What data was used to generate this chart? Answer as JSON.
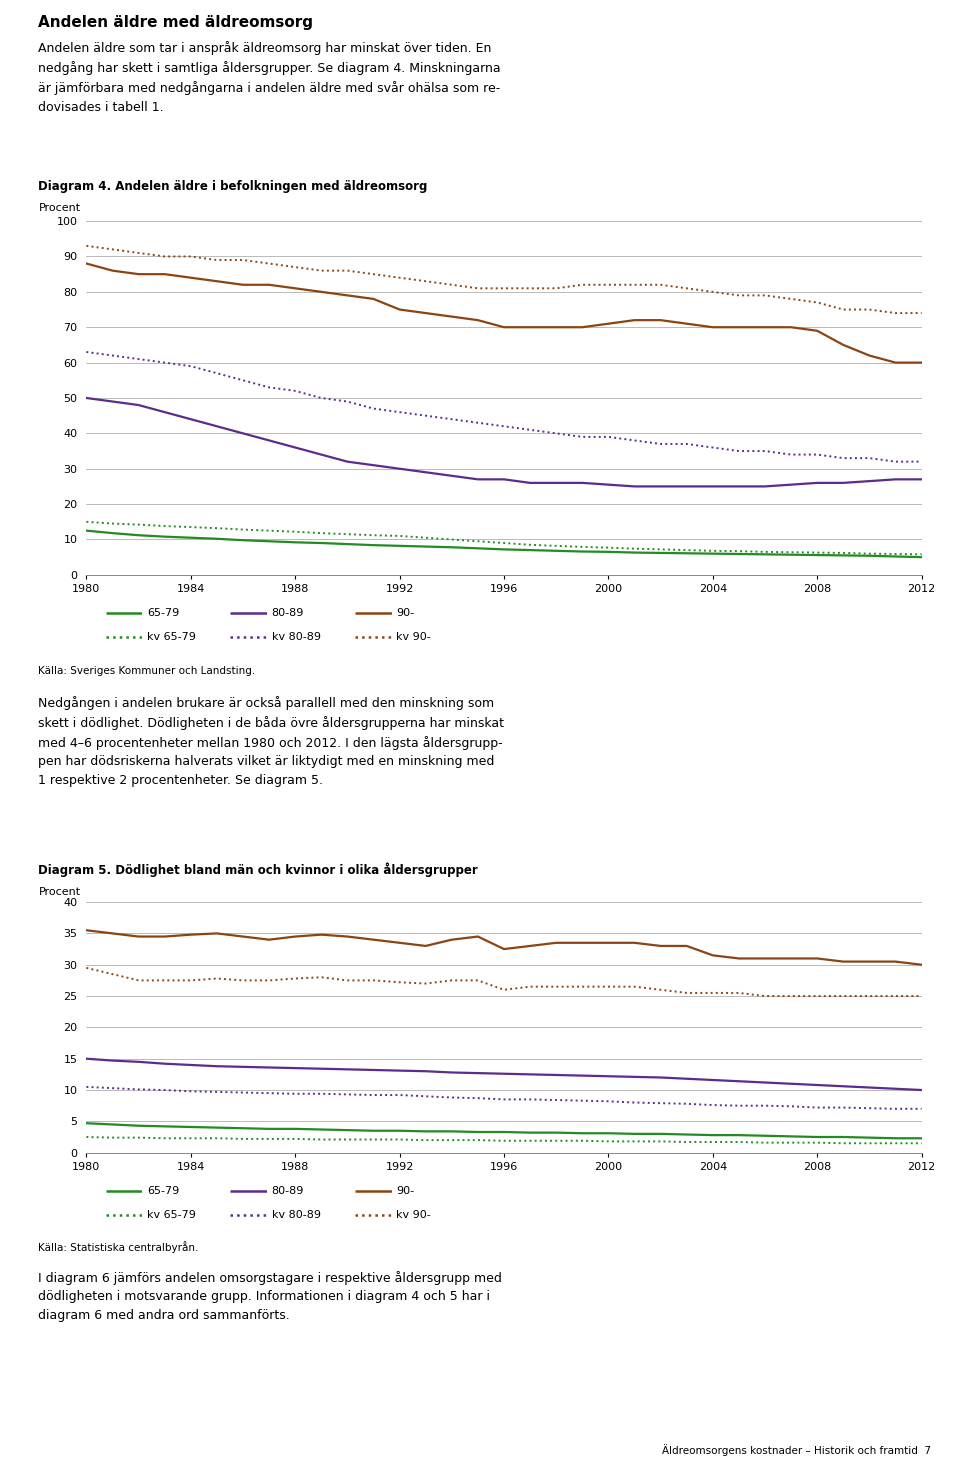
{
  "title_main": "Andelen äldre med äldreomsorg",
  "intro_text": "Andelen äldre som tar i anspråk äldreomsorg har minskat över tiden. En\nnedgång har skett i samtliga åldersgrupper. Se diagram 4. Minskningarna\när jämförbara med nedgångarna i andelen äldre med svår ohälsa som re-\ndovisades i tabell 1.",
  "diag4_title": "Diagram 4. Andelen äldre i befolkningen med äldreomsorg",
  "diag4_ylabel": "Procent",
  "diag5_title": "Diagram 5. Dödlighet bland män och kvinnor i olika åldersgrupper",
  "diag5_ylabel": "Procent",
  "source1": "Källa: Sveriges Kommuner och Landsting.",
  "middle_text": "Nedgången i andelen brukare är också parallell med den minskning som\nskett i dödlighet. Dödligheten i de båda övre åldersgrupperna har minskat\nmed 4–6 procentenheter mellan 1980 och 2012. I den lägsta åldersgrupp-\npen har dödsriskerna halverats vilket är liktydigt med en minskning med\n1 respektive 2 procentenheter. Se diagram 5.",
  "source2": "Källa: Statistiska centralbyrån.",
  "footer_text": "I diagram 6 jämförs andelen omsorgstagare i respektive åldersgrupp med\ndödligheten i motsvarande grupp. Informationen i diagram 4 och 5 har i\ndiagram 6 med andra ord sammanförts.",
  "footer_right": "Äldreomsorgens kostnader – Historik och framtid  7",
  "years": [
    1980,
    1981,
    1982,
    1983,
    1984,
    1985,
    1986,
    1987,
    1988,
    1989,
    1990,
    1991,
    1992,
    1993,
    1994,
    1995,
    1996,
    1997,
    1998,
    1999,
    2000,
    2001,
    2002,
    2003,
    2004,
    2005,
    2006,
    2007,
    2008,
    2009,
    2010,
    2011,
    2012
  ],
  "diag4": {
    "m6579": [
      12.5,
      11.8,
      11.2,
      10.8,
      10.5,
      10.2,
      9.8,
      9.5,
      9.2,
      9.0,
      8.7,
      8.4,
      8.2,
      8.0,
      7.8,
      7.5,
      7.2,
      7.0,
      6.8,
      6.6,
      6.5,
      6.3,
      6.2,
      6.1,
      6.0,
      5.9,
      5.8,
      5.7,
      5.6,
      5.5,
      5.4,
      5.2,
      5.0
    ],
    "m8089": [
      50,
      49,
      48,
      46,
      44,
      42,
      40,
      38,
      36,
      34,
      32,
      31,
      30,
      29,
      28,
      27,
      27,
      26,
      26,
      26,
      25.5,
      25,
      25,
      25,
      25,
      25,
      25,
      25.5,
      26,
      26,
      26.5,
      27,
      27
    ],
    "m90": [
      88,
      86,
      85,
      85,
      84,
      83,
      82,
      82,
      81,
      80,
      79,
      78,
      75,
      74,
      73,
      72,
      70,
      70,
      70,
      70,
      71,
      72,
      72,
      71,
      70,
      70,
      70,
      70,
      69,
      65,
      62,
      60,
      60
    ],
    "kv6579": [
      15,
      14.5,
      14.2,
      13.8,
      13.5,
      13.2,
      12.8,
      12.5,
      12.2,
      11.8,
      11.5,
      11.2,
      11.0,
      10.5,
      10.0,
      9.5,
      9.0,
      8.5,
      8.2,
      7.9,
      7.7,
      7.4,
      7.2,
      7.0,
      6.8,
      6.7,
      6.5,
      6.4,
      6.3,
      6.2,
      6.0,
      5.9,
      5.8
    ],
    "kv8089": [
      63,
      62,
      61,
      60,
      59,
      57,
      55,
      53,
      52,
      50,
      49,
      47,
      46,
      45,
      44,
      43,
      42,
      41,
      40,
      39,
      39,
      38,
      37,
      37,
      36,
      35,
      35,
      34,
      34,
      33,
      33,
      32,
      32
    ],
    "kv90": [
      93,
      92,
      91,
      90,
      90,
      89,
      89,
      88,
      87,
      86,
      86,
      85,
      84,
      83,
      82,
      81,
      81,
      81,
      81,
      82,
      82,
      82,
      82,
      81,
      80,
      79,
      79,
      78,
      77,
      75,
      75,
      74,
      74
    ]
  },
  "diag5": {
    "m6579": [
      4.7,
      4.5,
      4.3,
      4.2,
      4.1,
      4.0,
      3.9,
      3.8,
      3.8,
      3.7,
      3.6,
      3.5,
      3.5,
      3.4,
      3.4,
      3.3,
      3.3,
      3.2,
      3.2,
      3.1,
      3.1,
      3.0,
      3.0,
      2.9,
      2.8,
      2.8,
      2.7,
      2.6,
      2.5,
      2.5,
      2.4,
      2.3,
      2.3
    ],
    "m8089": [
      15,
      14.7,
      14.5,
      14.2,
      14.0,
      13.8,
      13.7,
      13.6,
      13.5,
      13.4,
      13.3,
      13.2,
      13.1,
      13.0,
      12.8,
      12.7,
      12.6,
      12.5,
      12.4,
      12.3,
      12.2,
      12.1,
      12.0,
      11.8,
      11.6,
      11.4,
      11.2,
      11.0,
      10.8,
      10.6,
      10.4,
      10.2,
      10.0
    ],
    "m90": [
      35.5,
      35.0,
      34.5,
      34.5,
      34.8,
      35.0,
      34.5,
      34.0,
      34.5,
      34.8,
      34.5,
      34.0,
      33.5,
      33.0,
      34.0,
      34.5,
      32.5,
      33.0,
      33.5,
      33.5,
      33.5,
      33.5,
      33.0,
      33.0,
      31.5,
      31.0,
      31.0,
      31.0,
      31.0,
      30.5,
      30.5,
      30.5,
      30.0
    ],
    "kv6579": [
      2.5,
      2.4,
      2.4,
      2.3,
      2.3,
      2.3,
      2.2,
      2.2,
      2.2,
      2.1,
      2.1,
      2.1,
      2.1,
      2.0,
      2.0,
      2.0,
      1.9,
      1.9,
      1.9,
      1.9,
      1.8,
      1.8,
      1.8,
      1.7,
      1.7,
      1.7,
      1.6,
      1.6,
      1.6,
      1.5,
      1.5,
      1.5,
      1.5
    ],
    "kv8089": [
      10.5,
      10.3,
      10.1,
      10.0,
      9.8,
      9.7,
      9.6,
      9.5,
      9.4,
      9.4,
      9.3,
      9.2,
      9.2,
      9.0,
      8.8,
      8.7,
      8.5,
      8.5,
      8.4,
      8.3,
      8.2,
      8.0,
      7.9,
      7.8,
      7.6,
      7.5,
      7.5,
      7.4,
      7.2,
      7.2,
      7.1,
      7.0,
      7.0
    ],
    "kv90": [
      29.5,
      28.5,
      27.5,
      27.5,
      27.5,
      27.8,
      27.5,
      27.5,
      27.8,
      28.0,
      27.5,
      27.5,
      27.2,
      27.0,
      27.5,
      27.5,
      26.0,
      26.5,
      26.5,
      26.5,
      26.5,
      26.5,
      26.0,
      25.5,
      25.5,
      25.5,
      25.0,
      25.0,
      25.0,
      25.0,
      25.0,
      25.0,
      25.0
    ]
  },
  "color_green": "#228B22",
  "color_purple": "#5B2C8D",
  "color_brown": "#8B4513",
  "bg_color": "#ffffff",
  "grid_color": "#b0b0b0"
}
